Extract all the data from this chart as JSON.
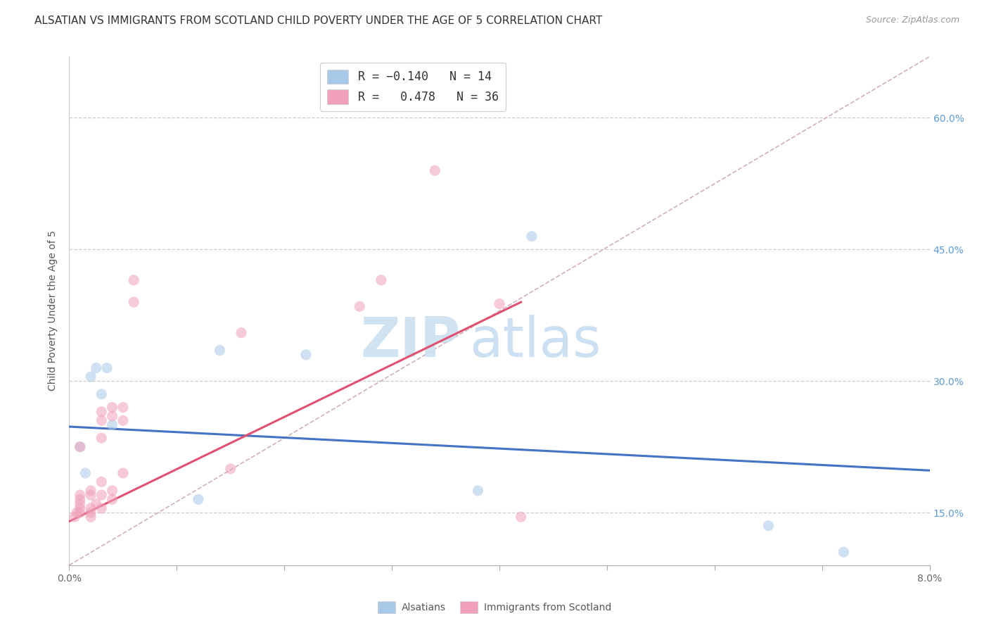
{
  "title": "ALSATIAN VS IMMIGRANTS FROM SCOTLAND CHILD POVERTY UNDER THE AGE OF 5 CORRELATION CHART",
  "source": "Source: ZipAtlas.com",
  "ylabel": "Child Poverty Under the Age of 5",
  "yticks": [
    0.15,
    0.3,
    0.45,
    0.6
  ],
  "ytick_labels": [
    "15.0%",
    "30.0%",
    "45.0%",
    "60.0%"
  ],
  "xlim": [
    0.0,
    0.08
  ],
  "ylim": [
    0.09,
    0.67
  ],
  "legend_label1": "Alsatians",
  "legend_label2": "Immigrants from Scotland",
  "blue_color": "#a8c8e8",
  "pink_color": "#f0a0b8",
  "blue_line_color": "#4472c4",
  "pink_line_color": "#e05070",
  "diagonal_color": "#d0b0b8",
  "blue_scatter_x": [
    0.001,
    0.0015,
    0.002,
    0.0025,
    0.003,
    0.0035,
    0.004,
    0.012,
    0.014,
    0.022,
    0.038,
    0.043,
    0.065,
    0.072
  ],
  "blue_scatter_y": [
    0.225,
    0.195,
    0.305,
    0.315,
    0.285,
    0.315,
    0.25,
    0.165,
    0.335,
    0.33,
    0.175,
    0.465,
    0.135,
    0.105
  ],
  "pink_scatter_x": [
    0.0005,
    0.0007,
    0.001,
    0.001,
    0.001,
    0.001,
    0.001,
    0.001,
    0.002,
    0.002,
    0.002,
    0.002,
    0.002,
    0.0025,
    0.003,
    0.003,
    0.003,
    0.003,
    0.003,
    0.003,
    0.004,
    0.004,
    0.004,
    0.004,
    0.005,
    0.005,
    0.005,
    0.006,
    0.006,
    0.015,
    0.016,
    0.027,
    0.029,
    0.034,
    0.04,
    0.042
  ],
  "pink_scatter_y": [
    0.145,
    0.15,
    0.15,
    0.155,
    0.16,
    0.165,
    0.17,
    0.225,
    0.145,
    0.15,
    0.155,
    0.17,
    0.175,
    0.16,
    0.155,
    0.17,
    0.185,
    0.235,
    0.255,
    0.265,
    0.165,
    0.175,
    0.27,
    0.26,
    0.195,
    0.255,
    0.27,
    0.39,
    0.415,
    0.2,
    0.355,
    0.385,
    0.415,
    0.54,
    0.388,
    0.145
  ],
  "blue_line_x": [
    0.0,
    0.08
  ],
  "blue_line_y": [
    0.248,
    0.198
  ],
  "pink_line_x": [
    0.0,
    0.042
  ],
  "pink_line_y": [
    0.14,
    0.39
  ],
  "diag_line_x": [
    0.0,
    0.08
  ],
  "diag_line_y": [
    0.09,
    0.67
  ],
  "watermark_zip": "ZIP",
  "watermark_atlas": "atlas",
  "background_color": "#ffffff",
  "title_fontsize": 11,
  "axis_label_fontsize": 10,
  "tick_fontsize": 10,
  "source_fontsize": 9,
  "legend_fontsize": 12,
  "scatter_size": 120,
  "scatter_alpha": 0.55
}
